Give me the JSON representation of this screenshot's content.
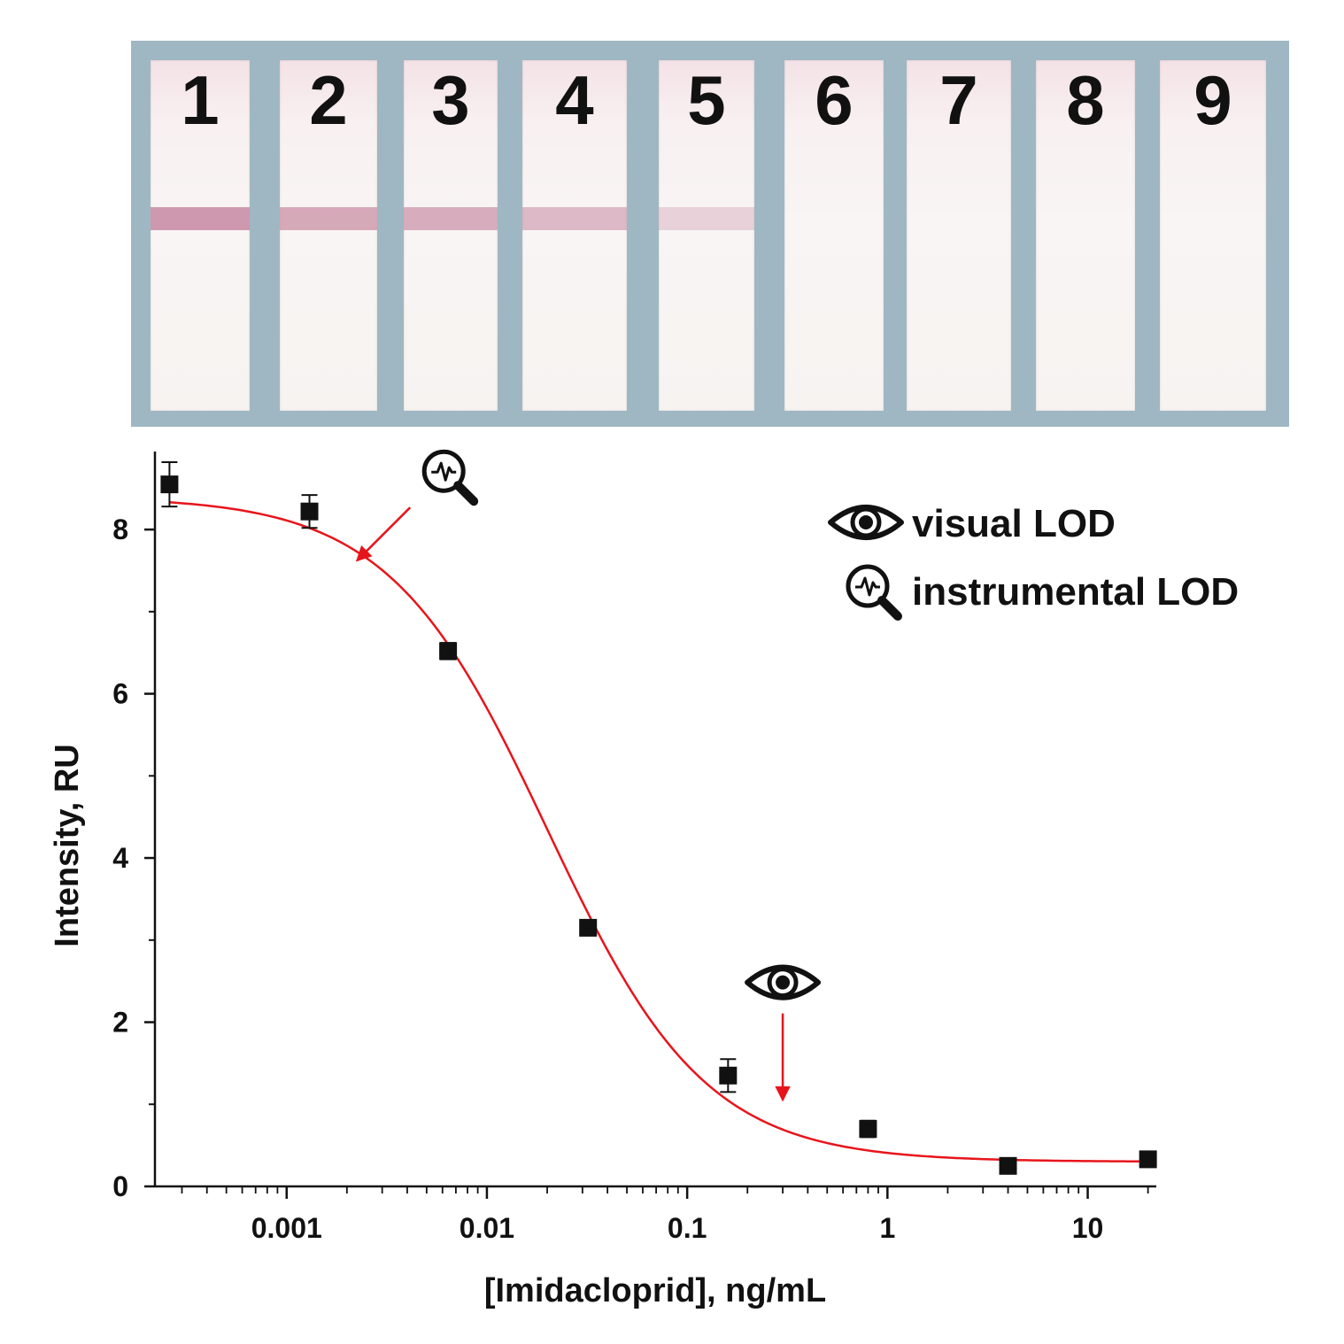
{
  "strips": [
    {
      "label": "1",
      "test_line_intensity": 0.9
    },
    {
      "label": "2",
      "test_line_intensity": 0.75
    },
    {
      "label": "3",
      "test_line_intensity": 0.7
    },
    {
      "label": "4",
      "test_line_intensity": 0.6
    },
    {
      "label": "5",
      "test_line_intensity": 0.35
    },
    {
      "label": "6",
      "test_line_intensity": 0.0
    },
    {
      "label": "7",
      "test_line_intensity": 0.0
    },
    {
      "label": "8",
      "test_line_intensity": 0.0
    },
    {
      "label": "9",
      "test_line_intensity": 0.0
    }
  ],
  "colors": {
    "strip_panel": "#9fb7c3",
    "test_line": "#c98fa6",
    "fit_curve": "#e8141b",
    "markers": "#111111",
    "annotation_arrow": "#e8141b"
  },
  "legend": {
    "visual_label": "visual LOD",
    "visual_icon": "eye-icon",
    "instrumental_label": "instrumental LOD",
    "instrumental_icon": "magnifier-waveform-icon"
  },
  "chart_data": {
    "type": "scatter",
    "xlabel": "[Imidacloprid], ng/mL",
    "ylabel": "Intensity, RU",
    "xscale": "log",
    "xlim": [
      0.00022,
      22
    ],
    "ylim": [
      0,
      8.95
    ],
    "x_tick_labels": [
      "0.001",
      "0.01",
      "0.1",
      "1",
      "10"
    ],
    "x_tick_values": [
      0.001,
      0.01,
      0.1,
      1,
      10
    ],
    "y_tick_labels": [
      "0",
      "2",
      "4",
      "6",
      "8"
    ],
    "y_tick_values": [
      0,
      2,
      4,
      6,
      8
    ],
    "legend_placement": "top-right",
    "series": [
      {
        "x": [
          0.00026,
          0.0013,
          0.0064,
          0.032,
          0.16,
          0.8,
          4,
          20
        ],
        "y": [
          8.55,
          8.22,
          6.52,
          3.15,
          1.35,
          0.7,
          0.25,
          0.33
        ],
        "y_error": [
          0.27,
          0.2,
          0.1,
          0.08,
          0.2,
          0.1,
          0.04,
          0.06
        ]
      }
    ],
    "fit_curve": {
      "type": "4PL",
      "top": 8.4,
      "bottom": 0.3,
      "ic50": 0.02,
      "hill": 1.1
    },
    "annotations": [
      {
        "name": "instrumental-lod",
        "icon": "magnifier-waveform-icon",
        "x": 0.0022,
        "y": 7.6
      },
      {
        "name": "visual-lod",
        "icon": "eye-icon",
        "x": 0.3,
        "y": 1.05
      }
    ]
  }
}
